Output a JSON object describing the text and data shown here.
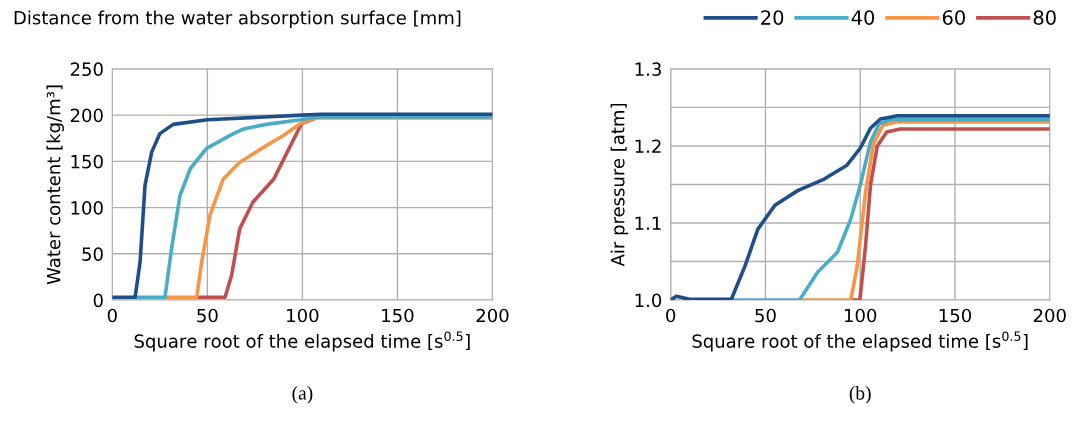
{
  "chart_data": [
    {
      "type": "line",
      "xlabel": "Square root of the elapsed time [s$^{0.5}$]",
      "ylabel": "Water content [kg/m³]",
      "legend_title": "Distance from the water absorption surface [mm]",
      "legend": "top",
      "xlim": [
        0,
        200
      ],
      "xticks": [
        0,
        50,
        100,
        150,
        200
      ],
      "ylim": [
        0,
        250
      ],
      "yticks": [
        0,
        50,
        100,
        150,
        200,
        250
      ],
      "grid": true,
      "marker": "none",
      "line_style": "solid",
      "annotations": [
        "(a)"
      ],
      "series": [
        {
          "name": "20",
          "color": "#1f4e89",
          "x": [
            0,
            12,
            14.6,
            17.2,
            20.7,
            25,
            32,
            50,
            100,
            110,
            200
          ],
          "values": [
            3,
            3,
            41,
            124,
            160,
            180,
            190,
            195,
            200,
            201,
            201
          ]
        },
        {
          "name": "40",
          "color": "#4bacc6",
          "x": [
            12,
            27.7,
            31.2,
            35.6,
            41,
            49.6,
            63.7,
            69,
            81,
            99,
            107.5,
            200
          ],
          "values": [
            3,
            3,
            56,
            113,
            142,
            164,
            180,
            185,
            190,
            195,
            198,
            198
          ]
        },
        {
          "name": "60",
          "color": "#f79646",
          "x": [
            27.7,
            44.4,
            47,
            51.4,
            58.4,
            67,
            81,
            90,
            99,
            107.5,
            200
          ],
          "values": [
            3,
            3,
            41,
            92,
            131,
            149,
            167,
            178,
            191,
            197,
            197
          ]
        },
        {
          "name": "80",
          "color": "#c0504d",
          "x": [
            44.4,
            59.3,
            62.8,
            67,
            74,
            85,
            92,
            99.6,
            107.5
          ],
          "values": [
            3,
            3,
            27,
            77,
            106,
            131,
            160,
            191,
            197
          ]
        }
      ]
    },
    {
      "type": "line",
      "xlabel": "Square root of the elapsed time [s$^{0.5}$]",
      "ylabel": "Air pressure [atm]",
      "xlim": [
        0,
        200
      ],
      "xticks": [
        0,
        50,
        100,
        150,
        200
      ],
      "ylim": [
        1.0,
        1.3
      ],
      "yticks": [
        {
          "value": 1.0,
          "label": "1.0"
        },
        {
          "value": 1.05,
          "label": null
        },
        {
          "value": 1.1,
          "label": "1.1"
        },
        {
          "value": 1.15,
          "label": null
        },
        {
          "value": 1.2,
          "label": "1.2"
        },
        {
          "value": 1.25,
          "label": null
        },
        {
          "value": 1.3,
          "label": "1.3"
        }
      ],
      "grid": true,
      "marker": "none",
      "line_style": "solid",
      "annotations": [
        "(b)"
      ],
      "series": [
        {
          "color": "#1f4e89",
          "x": [
            0,
            3,
            10,
            32,
            39.2,
            46,
            55,
            67,
            81,
            93,
            100,
            105.4,
            110.6,
            119,
            200
          ],
          "values": [
            1.0,
            1.005,
            1.001,
            1.001,
            1.044,
            1.092,
            1.123,
            1.142,
            1.157,
            1.175,
            1.197,
            1.223,
            1.235,
            1.239,
            1.239
          ]
        },
        {
          "color": "#4bacc6",
          "x": [
            32,
            68,
            77.5,
            88,
            95,
            100,
            105.4,
            110,
            116,
            200
          ],
          "values": [
            1.0,
            1.0,
            1.036,
            1.062,
            1.105,
            1.149,
            1.205,
            1.229,
            1.234,
            1.234
          ]
        },
        {
          "color": "#f79646",
          "x": [
            68,
            95,
            98.4,
            102.8,
            107,
            112,
            119,
            200
          ],
          "values": [
            1.0,
            1.0,
            1.044,
            1.14,
            1.203,
            1.227,
            1.231,
            1.231
          ]
        },
        {
          "color": "#c0504d",
          "x": [
            95,
            99.8,
            102.8,
            105.4,
            109,
            114,
            121,
            200
          ],
          "values": [
            1.0,
            1.0,
            1.07,
            1.149,
            1.2,
            1.218,
            1.222,
            1.222
          ]
        }
      ]
    }
  ]
}
